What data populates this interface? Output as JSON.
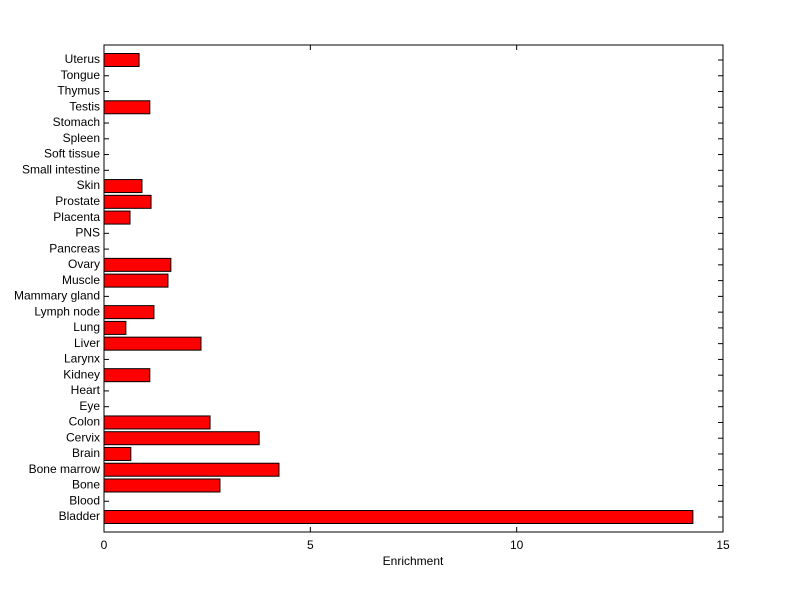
{
  "chart_data": {
    "type": "barh",
    "xlabel": "Enrichment",
    "categories": [
      "Bladder",
      "Blood",
      "Bone",
      "Bone marrow",
      "Brain",
      "Cervix",
      "Colon",
      "Eye",
      "Heart",
      "Kidney",
      "Larynx",
      "Liver",
      "Lung",
      "Lymph node",
      "Mammary gland",
      "Muscle",
      "Ovary",
      "Pancreas",
      "PNS",
      "Placenta",
      "Prostate",
      "Skin",
      "Small intestine",
      "Soft tissue",
      "Spleen",
      "Stomach",
      "Testis",
      "Thymus",
      "Tongue",
      "Uterus"
    ],
    "values": [
      14.27,
      0,
      2.81,
      4.24,
      0.65,
      3.76,
      2.57,
      0,
      0,
      1.11,
      0,
      2.35,
      0.53,
      1.21,
      0,
      1.55,
      1.62,
      0,
      0,
      0.63,
      1.14,
      0.92,
      0,
      0,
      0,
      0,
      1.11,
      0,
      0,
      0.85
    ],
    "color": "#ff0000",
    "xlim": [
      0,
      15
    ],
    "xticks": [
      0,
      5,
      10,
      15
    ]
  }
}
